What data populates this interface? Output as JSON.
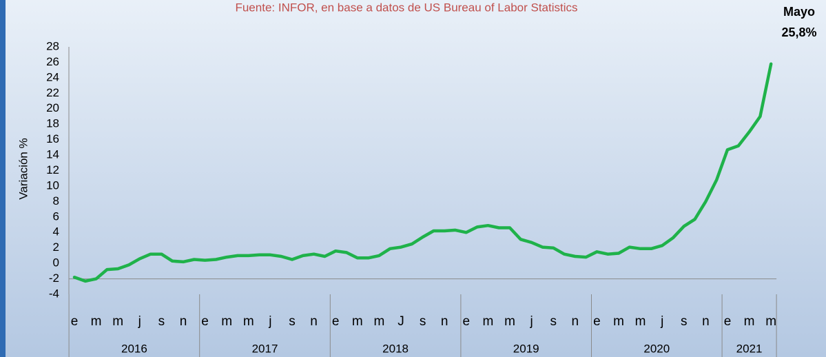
{
  "chart_data": {
    "type": "line",
    "title": "Fuente: INFOR, en base a datos de US Bureau of Labor Statistics",
    "annotations": [
      "Mayo",
      "25,8%"
    ],
    "ylabel": "Variación %",
    "categories": [
      "e",
      null,
      "m",
      null,
      "m",
      null,
      "j",
      null,
      "s",
      null,
      "n",
      null,
      "e",
      null,
      "m",
      null,
      "m",
      null,
      "j",
      null,
      "s",
      null,
      "n",
      null,
      "e",
      null,
      "m",
      null,
      "m",
      null,
      "J",
      null,
      "s",
      null,
      "n",
      null,
      "e",
      null,
      "m",
      null,
      "m",
      null,
      "j",
      null,
      "s",
      null,
      "n",
      null,
      "e",
      null,
      "m",
      null,
      "m",
      null,
      "j",
      null,
      "s",
      null,
      "n",
      null,
      "e",
      null,
      "m",
      null,
      "m"
    ],
    "groups": [
      {
        "label": "2016",
        "count": 12
      },
      {
        "label": "2017",
        "count": 12
      },
      {
        "label": "2018",
        "count": 12
      },
      {
        "label": "2019",
        "count": 12
      },
      {
        "label": "2020",
        "count": 12
      },
      {
        "label": "2021",
        "count": 5
      }
    ],
    "series": [
      {
        "name": "Variación %",
        "color": "#1fb24a",
        "values": [
          -1.8,
          -2.3,
          -2.0,
          -0.8,
          -0.7,
          -0.2,
          0.6,
          1.2,
          1.2,
          0.3,
          0.2,
          0.5,
          0.4,
          0.5,
          0.8,
          1.0,
          1.0,
          1.1,
          1.1,
          0.9,
          0.5,
          1.0,
          1.2,
          0.9,
          1.6,
          1.4,
          0.7,
          0.7,
          1.0,
          1.9,
          2.1,
          2.5,
          3.4,
          4.2,
          4.2,
          4.3,
          4.0,
          4.7,
          4.9,
          4.6,
          4.6,
          3.1,
          2.7,
          2.1,
          2.0,
          1.2,
          0.9,
          0.8,
          1.5,
          1.2,
          1.3,
          2.1,
          1.9,
          1.9,
          2.3,
          3.3,
          4.8,
          5.7,
          8.0,
          10.8,
          14.7,
          15.2,
          17.0,
          19.0,
          25.8
        ]
      }
    ],
    "ylim": [
      -4,
      28
    ],
    "yticks": [
      -4,
      -2,
      0,
      2,
      4,
      6,
      8,
      10,
      12,
      14,
      16,
      18,
      20,
      22,
      24,
      26,
      28
    ],
    "xaxis_crosses": -2,
    "grid": false
  }
}
